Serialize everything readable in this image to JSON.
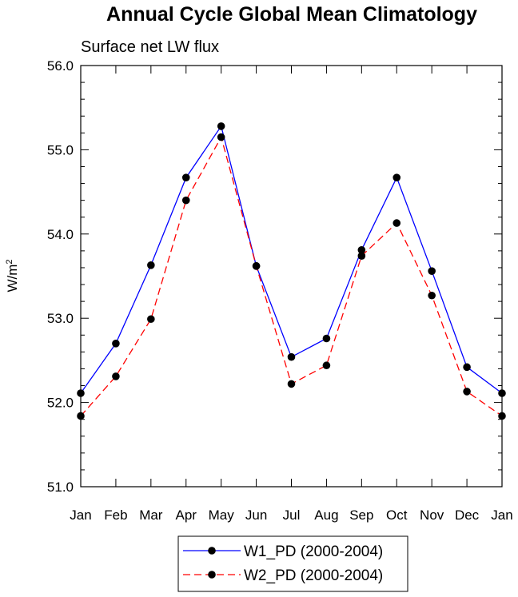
{
  "chart_data": {
    "type": "line",
    "title": "Annual Cycle Global Mean Climatology",
    "subtitle": "Surface net LW flux",
    "xlabel": "",
    "ylabel": "W/m",
    "ylabel_sup": "2",
    "ylim": [
      51.0,
      56.0
    ],
    "y_major_ticks": [
      51.0,
      52.0,
      53.0,
      54.0,
      55.0,
      56.0
    ],
    "y_tick_labels": [
      "51.0",
      "52.0",
      "53.0",
      "54.0",
      "55.0",
      "56.0"
    ],
    "categories": [
      "Jan",
      "Feb",
      "Mar",
      "Apr",
      "May",
      "Jun",
      "Jul",
      "Aug",
      "Sep",
      "Oct",
      "Nov",
      "Dec",
      "Jan"
    ],
    "grid": false,
    "legend_position": "bottom-center",
    "series": [
      {
        "name": "W1_PD (2000-2004)",
        "color": "#0000ff",
        "line_style": "solid",
        "marker": "filled-circle",
        "values": [
          52.11,
          52.7,
          53.63,
          54.67,
          55.28,
          53.62,
          52.54,
          52.76,
          53.81,
          54.67,
          53.56,
          52.42,
          52.11
        ]
      },
      {
        "name": "W2_PD (2000-2004)",
        "color": "#ff0000",
        "line_style": "dashed",
        "marker": "filled-circle",
        "values": [
          51.84,
          52.31,
          52.99,
          54.4,
          55.15,
          53.62,
          52.22,
          52.44,
          53.74,
          54.13,
          53.27,
          52.13,
          51.84
        ]
      }
    ]
  }
}
